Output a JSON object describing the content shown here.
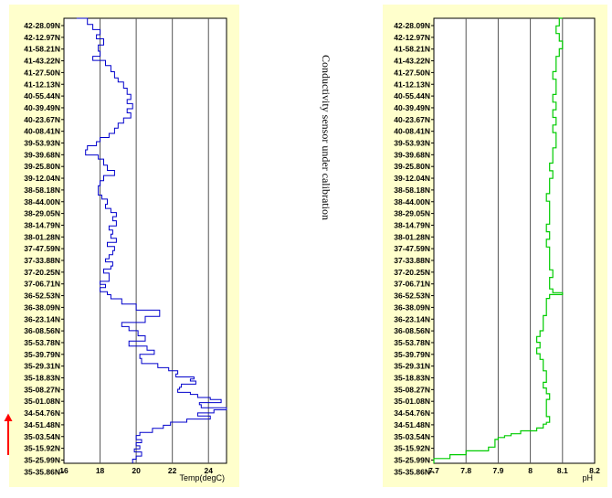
{
  "note": "Conductivity sensor under calibration",
  "latitudes": [
    "42-28.09N",
    "42-12.97N",
    "41-58.21N",
    "41-43.22N",
    "41-27.50N",
    "41-12.13N",
    "40-55.44N",
    "40-39.49N",
    "40-23.67N",
    "40-08.41N",
    "39-53.93N",
    "39-39.68N",
    "39-25.80N",
    "39-12.04N",
    "38-58.18N",
    "38-44.00N",
    "38-29.05N",
    "38-14.79N",
    "38-01.28N",
    "37-47.59N",
    "37-33.88N",
    "37-20.25N",
    "37-06.71N",
    "36-52.53N",
    "36-38.09N",
    "36-23.14N",
    "36-08.56N",
    "35-53.78N",
    "35-39.79N",
    "35-29.31N",
    "35-18.83N",
    "35-08.27N",
    "35-01.08N",
    "34-54.76N",
    "34-51.48N",
    "35-03.54N",
    "35-15.92N",
    "35-25.99N",
    "35-35.86N"
  ],
  "colors": {
    "panel": "#ffffcc",
    "temp_line": "#0000cc",
    "ph_line": "#00cc00",
    "arrow": "#ff0000",
    "grid": "#555555"
  },
  "arrow_icon": "arrow-up-icon",
  "chart_data": [
    {
      "type": "line",
      "xlabel": "Temp(degC)",
      "xlim": [
        16,
        25
      ],
      "xticks": [
        "16",
        "18",
        "20",
        "22",
        "24"
      ],
      "tick_values": [
        16,
        18,
        20,
        22,
        24
      ],
      "series": [
        {
          "x": [
            16.7,
            17.3,
            17.6,
            18.0,
            17.8,
            18.2,
            17.9,
            18.0,
            17.6,
            18.3,
            18.6,
            18.8,
            19.0,
            19.3,
            19.5,
            19.7,
            19.5,
            19.8,
            19.5,
            19.7,
            19.3,
            19.0,
            18.8,
            18.5,
            18.0,
            17.8,
            17.3,
            17.2,
            17.9,
            18.2,
            18.4,
            18.8,
            18.2,
            18.0,
            17.9,
            17.9,
            18.1,
            18.4,
            18.3,
            18.6,
            18.9,
            18.7,
            18.9,
            18.5,
            18.7,
            18.6,
            18.9,
            18.4,
            18.8,
            18.7,
            18.5,
            18.3,
            18.7,
            18.6,
            18.2,
            18.5,
            18.5,
            18.0,
            18.3,
            18.0,
            18.4,
            18.6,
            19.2,
            20.0,
            21.3,
            20.5,
            19.2,
            19.6,
            20.1,
            20.5,
            19.6,
            20.6,
            21.0,
            20.2,
            20.3,
            21.2,
            21.8,
            22.3,
            22.2,
            23.2,
            23.0,
            23.3,
            22.5,
            22.4,
            22.3,
            23.0,
            23.4,
            24.1,
            24.7,
            23.5,
            23.6,
            25.0,
            24.3,
            23.4,
            24.1,
            22.8,
            21.9,
            21.5,
            20.9,
            20.2,
            20.0,
            20.3,
            20.0,
            20.2,
            19.9,
            20.3,
            20.0,
            19.8
          ],
          "y": [
            0,
            0.6,
            1.1,
            1.6,
            2.0,
            2.6,
            3.2,
            3.7,
            4.1,
            4.6,
            5.2,
            5.8,
            6.2,
            6.8,
            7.4,
            7.9,
            8.3,
            8.8,
            9.2,
            9.7,
            10.2,
            10.7,
            11.2,
            11.6,
            12.0,
            12.4,
            12.8,
            13.3,
            13.7,
            14.3,
            14.8,
            15.3,
            15.8,
            16.3,
            16.8,
            17.2,
            17.6,
            18.1,
            18.5,
            18.9,
            19.3,
            19.7,
            20.2,
            20.6,
            21.0,
            21.4,
            21.8,
            22.2,
            22.6,
            23.0,
            23.4,
            23.7,
            24.1,
            24.4,
            24.8,
            25.2,
            25.6,
            25.9,
            26.2,
            26.6,
            26.9,
            27.3,
            27.8,
            28.4,
            29.0,
            29.6,
            30.0,
            30.4,
            30.9,
            31.4,
            31.9,
            32.3,
            32.7,
            33.1,
            33.6,
            34.0,
            34.3,
            34.6,
            34.9,
            35.1,
            35.3,
            35.6,
            35.9,
            36.1,
            36.4,
            36.6,
            36.9,
            37.1,
            37.4,
            37.6,
            37.9,
            38.1,
            38.4,
            38.7,
            39.0,
            39.3,
            39.6,
            39.9,
            40.3,
            40.6,
            41.0,
            41.3,
            41.6,
            41.9,
            42.2,
            42.6,
            42.9,
            43.3
          ]
        }
      ]
    },
    {
      "type": "line",
      "xlabel": "pH",
      "xlim": [
        7.7,
        8.2
      ],
      "xticks": [
        "7.7",
        "7.8",
        "7.9",
        "8",
        "8.1",
        "8.2"
      ],
      "tick_values": [
        7.7,
        7.8,
        7.9,
        8.0,
        8.1,
        8.2
      ],
      "series": [
        {
          "x": [
            8.1,
            8.09,
            8.08,
            8.09,
            8.1,
            8.09,
            8.08,
            8.08,
            8.07,
            8.08,
            8.08,
            8.07,
            8.08,
            8.07,
            8.08,
            8.07,
            8.08,
            8.08,
            8.07,
            8.07,
            8.06,
            8.07,
            8.06,
            8.06,
            8.05,
            8.06,
            8.06,
            8.06,
            8.05,
            8.06,
            8.05,
            8.06,
            8.06,
            8.06,
            8.07,
            8.06,
            8.06,
            8.07,
            8.1,
            8.06,
            8.05,
            8.05,
            8.04,
            8.04,
            8.03,
            8.02,
            8.03,
            8.02,
            8.03,
            8.04,
            8.04,
            8.05,
            8.05,
            8.04,
            8.05,
            8.06,
            8.05,
            8.05,
            8.05,
            8.06,
            8.05,
            8.04,
            8.02,
            7.97,
            7.94,
            7.92,
            7.9,
            7.89,
            7.89,
            7.87,
            7.8,
            7.75,
            7.7
          ],
          "y": [
            0,
            0.8,
            1.6,
            2.4,
            3.2,
            4.0,
            4.8,
            5.6,
            6.4,
            7.2,
            8.0,
            8.8,
            9.6,
            10.4,
            11.2,
            12.0,
            12.8,
            13.6,
            14.4,
            15.2,
            16.0,
            16.8,
            17.6,
            18.4,
            19.2,
            20.0,
            20.8,
            21.6,
            22.4,
            23.2,
            24.0,
            24.8,
            25.6,
            26.4,
            27.2,
            28.0,
            28.4,
            28.8,
            29.0,
            29.4,
            30.4,
            31.2,
            32.0,
            32.8,
            33.4,
            34.0,
            34.6,
            35.2,
            35.8,
            36.4,
            37.0,
            37.6,
            38.2,
            38.8,
            39.4,
            40.0,
            40.6,
            41.2,
            41.8,
            42.4,
            42.6,
            43.0,
            43.3,
            43.6,
            43.8,
            44.0,
            44.2,
            44.6,
            45.0,
            45.4,
            45.8,
            46.2,
            46.7
          ]
        }
      ]
    }
  ]
}
